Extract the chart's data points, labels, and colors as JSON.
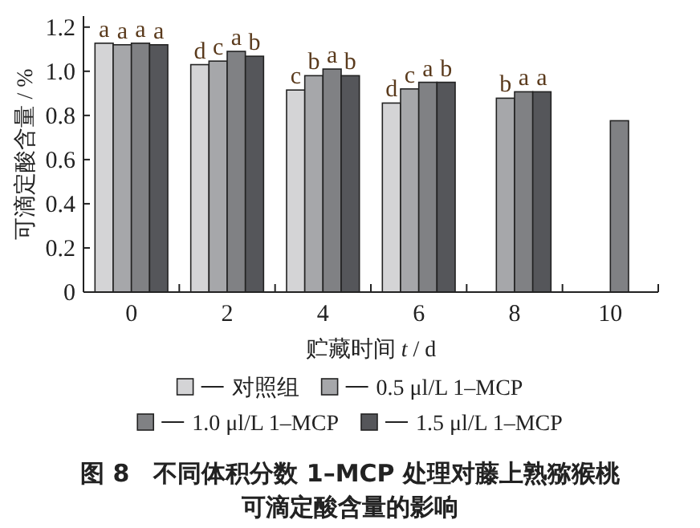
{
  "chart_data": {
    "type": "bar",
    "title": "图 8　不同体积分数 1–MCP 处理对藤上熟猕猴桃可滴定酸含量的影响",
    "xlabel": "贮藏时间 *t* / d",
    "ylabel": "可滴定酸含量 / %",
    "categories": [
      "0",
      "2",
      "4",
      "6",
      "8",
      "10"
    ],
    "series": [
      {
        "name": "对照组",
        "color": "#d4d4d6",
        "values": [
          1.127,
          1.03,
          0.915,
          0.856,
          null,
          null
        ],
        "value_labels": [
          "a",
          "d",
          "c",
          "d",
          null,
          null
        ]
      },
      {
        "name": "0.5 μl/L 1–MCP",
        "color": "#a6a7aa",
        "values": [
          1.12,
          1.046,
          0.98,
          0.92,
          0.878,
          null
        ],
        "value_labels": [
          "a",
          "c",
          "b",
          "c",
          "b",
          null
        ]
      },
      {
        "name": "1.0 μl/L 1–MCP",
        "color": "#808184",
        "values": [
          1.127,
          1.09,
          1.01,
          0.95,
          0.907,
          0.776
        ],
        "value_labels": [
          "a",
          "a",
          "a",
          "a",
          "a",
          null
        ]
      },
      {
        "name": "1.5 μl/L 1–MCP",
        "color": "#55565a",
        "values": [
          1.12,
          1.068,
          0.98,
          0.95,
          0.907,
          null
        ],
        "value_labels": [
          "a",
          "b",
          "b",
          "b",
          "a",
          null
        ]
      }
    ],
    "ylim": [
      0,
      1.25
    ],
    "yticks": [
      0,
      0.2,
      0.4,
      0.6,
      0.8,
      {
        "value": 1,
        "label": "1.0"
      },
      1.2
    ],
    "legend": "bottom",
    "grid": false
  }
}
